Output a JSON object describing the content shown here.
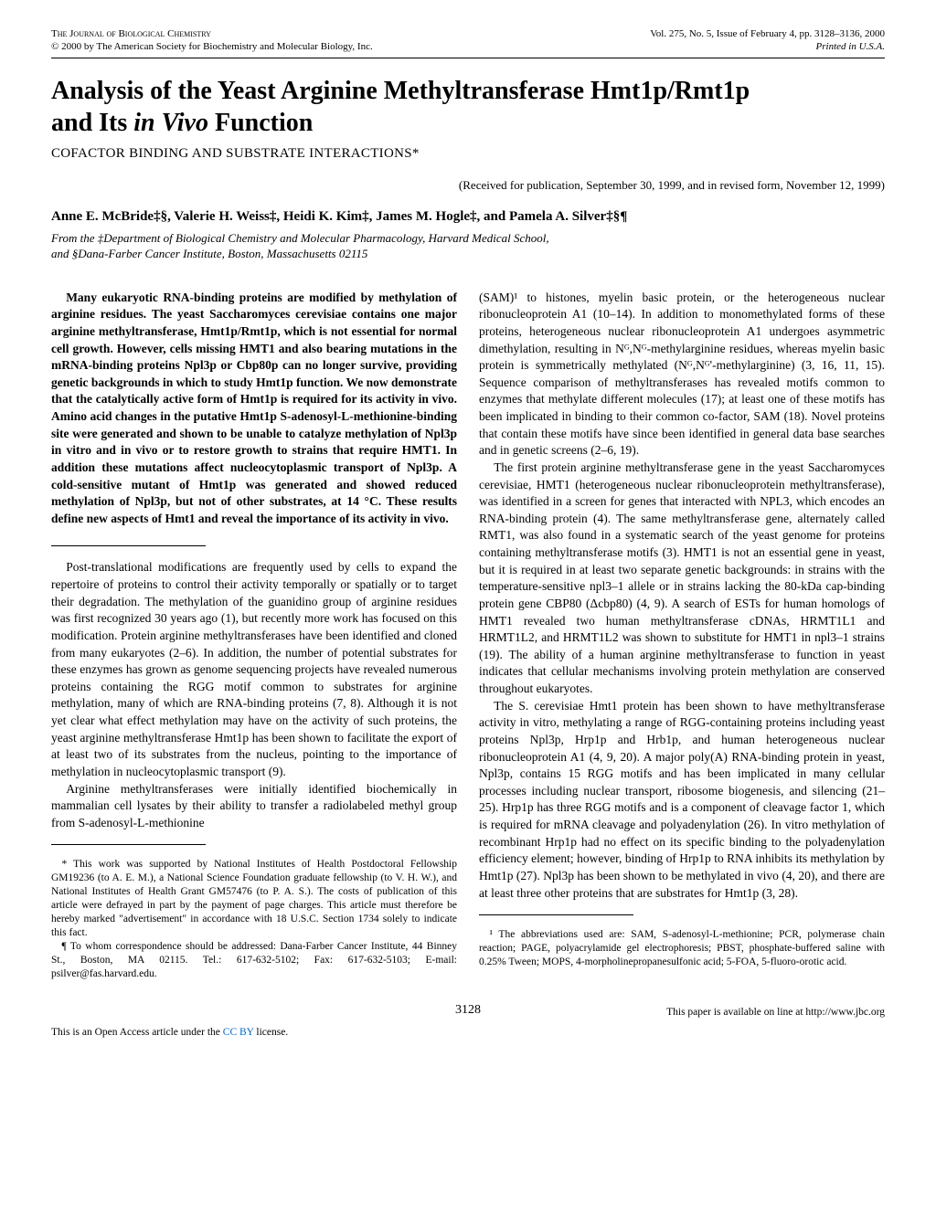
{
  "header": {
    "journal": "The Journal of Biological Chemistry",
    "copyright": "© 2000 by The American Society for Biochemistry and Molecular Biology, Inc.",
    "citation": "Vol. 275, No. 5, Issue of February 4, pp. 3128–3136, 2000",
    "printed": "Printed in U.S.A."
  },
  "title_line1": "Analysis of the Yeast Arginine Methyltransferase Hmt1p/Rmt1p",
  "title_line2": "and Its ",
  "title_italic": "in Vivo",
  "title_line2_end": " Function",
  "subtitle": "COFACTOR BINDING AND SUBSTRATE INTERACTIONS*",
  "received": "(Received for publication, September 30, 1999, and in revised form, November 12, 1999)",
  "authors": "Anne E. McBride‡§, Valerie H. Weiss‡, Heidi K. Kim‡, James M. Hogle‡, and Pamela A. Silver‡§¶",
  "affil1": "From the ‡Department of Biological Chemistry and Molecular Pharmacology, Harvard Medical School,",
  "affil2": "and §Dana-Farber Cancer Institute, Boston, Massachusetts 02115",
  "abstract": "Many eukaryotic RNA-binding proteins are modified by methylation of arginine residues. The yeast Saccharomyces cerevisiae contains one major arginine methyltransferase, Hmt1p/Rmt1p, which is not essential for normal cell growth. However, cells missing HMT1 and also bearing mutations in the mRNA-binding proteins Npl3p or Cbp80p can no longer survive, providing genetic backgrounds in which to study Hmt1p function. We now demonstrate that the catalytically active form of Hmt1p is required for its activity in vivo. Amino acid changes in the putative Hmt1p S-adenosyl-L-methionine-binding site were generated and shown to be unable to catalyze methylation of Npl3p in vitro and in vivo or to restore growth to strains that require HMT1. In addition these mutations affect nucleocytoplasmic transport of Npl3p. A cold-sensitive mutant of Hmt1p was generated and showed reduced methylation of Npl3p, but not of other substrates, at 14 °C. These results define new aspects of Hmt1 and reveal the importance of its activity in vivo.",
  "body": {
    "p1": "Post-translational modifications are frequently used by cells to expand the repertoire of proteins to control their activity temporally or spatially or to target their degradation. The methylation of the guanidino group of arginine residues was first recognized 30 years ago (1), but recently more work has focused on this modification. Protein arginine methyltransferases have been identified and cloned from many eukaryotes (2–6). In addition, the number of potential substrates for these enzymes has grown as genome sequencing projects have revealed numerous proteins containing the RGG motif common to substrates for arginine methylation, many of which are RNA-binding proteins (7, 8). Although it is not yet clear what effect methylation may have on the activity of such proteins, the yeast arginine methyltransferase Hmt1p has been shown to facilitate the export of at least two of its substrates from the nucleus, pointing to the importance of methylation in nucleocytoplasmic transport (9).",
    "p2": "Arginine methyltransferases were initially identified biochemically in mammalian cell lysates by their ability to transfer a radiolabeled methyl group from S-adenosyl-L-methionine",
    "p3": "(SAM)¹ to histones, myelin basic protein, or the heterogeneous nuclear ribonucleoprotein A1 (10–14). In addition to monomethylated forms of these proteins, heterogeneous nuclear ribonucleoprotein A1 undergoes asymmetric dimethylation, resulting in Nᴳ,Nᴳ-methylarginine residues, whereas myelin basic protein is symmetrically methylated (Nᴳ,Nᴳ'-methylarginine) (3, 16, 11, 15). Sequence comparison of methyltransferases has revealed motifs common to enzymes that methylate different molecules (17); at least one of these motifs has been implicated in binding to their common co-factor, SAM (18). Novel proteins that contain these motifs have since been identified in general data base searches and in genetic screens (2–6, 19).",
    "p4": "The first protein arginine methyltransferase gene in the yeast Saccharomyces cerevisiae, HMT1 (heterogeneous nuclear ribonucleoprotein methyltransferase), was identified in a screen for genes that interacted with NPL3, which encodes an RNA-binding protein (4). The same methyltransferase gene, alternately called RMT1, was also found in a systematic search of the yeast genome for proteins containing methyltransferase motifs (3). HMT1 is not an essential gene in yeast, but it is required in at least two separate genetic backgrounds: in strains with the temperature-sensitive npl3–1 allele or in strains lacking the 80-kDa cap-binding protein gene CBP80 (Δcbp80) (4, 9). A search of ESTs for human homologs of HMT1 revealed two human methyltransferase cDNAs, HRMT1L1 and HRMT1L2, and HRMT1L2 was shown to substitute for HMT1 in npl3–1 strains (19). The ability of a human arginine methyltransferase to function in yeast indicates that cellular mechanisms involving protein methylation are conserved throughout eukaryotes.",
    "p5": "The S. cerevisiae Hmt1 protein has been shown to have methyltransferase activity in vitro, methylating a range of RGG-containing proteins including yeast proteins Npl3p, Hrp1p and Hrb1p, and human heterogeneous nuclear ribonucleoprotein A1 (4, 9, 20). A major poly(A) RNA-binding protein in yeast, Npl3p, contains 15 RGG motifs and has been implicated in many cellular processes including nuclear transport, ribosome biogenesis, and silencing (21–25). Hrp1p has three RGG motifs and is a component of cleavage factor 1, which is required for mRNA cleavage and polyadenylation (26). In vitro methylation of recombinant Hrp1p had no effect on its specific binding to the polyadenylation efficiency element; however, binding of Hrp1p to RNA inhibits its methylation by Hmt1p (27). Npl3p has been shown to be methylated in vivo (4, 20), and there are at least three other proteins that are substrates for Hmt1p (3, 28)."
  },
  "footnotes": {
    "f1": "* This work was supported by National Institutes of Health Postdoctoral Fellowship GM19236 (to A. E. M.), a National Science Foundation graduate fellowship (to V. H. W.), and National Institutes of Health Grant GM57476 (to P. A. S.). The costs of publication of this article were defrayed in part by the payment of page charges. This article must therefore be hereby marked \"advertisement\" in accordance with 18 U.S.C. Section 1734 solely to indicate this fact.",
    "f2": "¶ To whom correspondence should be addressed: Dana-Farber Cancer Institute, 44 Binney St., Boston, MA 02115. Tel.: 617-632-5102; Fax: 617-632-5103; E-mail: psilver@fas.harvard.edu.",
    "f3": "¹ The abbreviations used are: SAM, S-adenosyl-L-methionine; PCR, polymerase chain reaction; PAGE, polyacrylamide gel electrophoresis; PBST, phosphate-buffered saline with 0.25% Tween; MOPS, 4-morpholinepropanesulfonic acid; 5-FOA, 5-fluoro-orotic acid."
  },
  "footer": {
    "pagenum": "3128",
    "online": "This paper is available on line at http://www.jbc.org",
    "license_text": "This is an Open Access article under the ",
    "license_link": "CC BY",
    "license_end": " license."
  }
}
